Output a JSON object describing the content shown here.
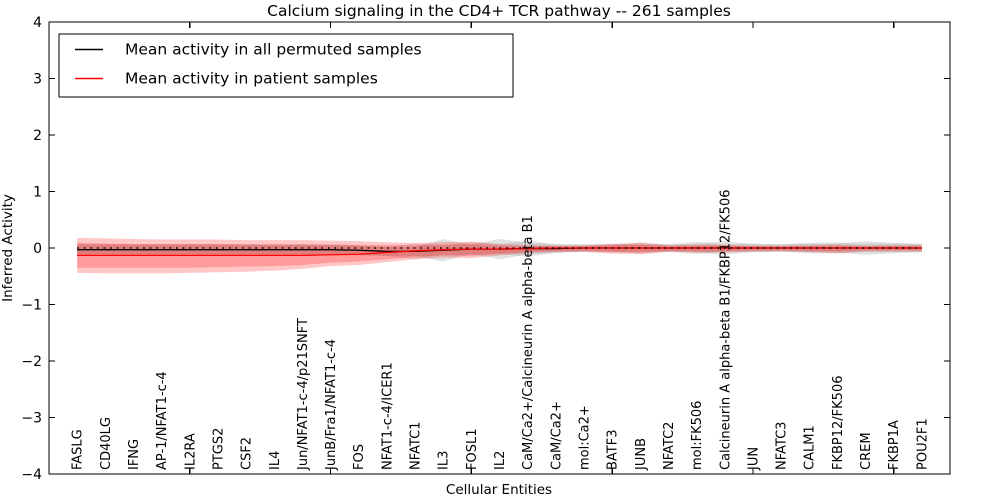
{
  "title": "Calcium signaling in the CD4+ TCR pathway -- 261 samples",
  "xlabel": "Cellular Entities",
  "ylabel": "Inferred Activity",
  "legend": {
    "entries": [
      {
        "label": "Mean activity in all permuted samples",
        "color": "#000000"
      },
      {
        "label": "Mean activity in patient samples",
        "color": "#ff0000"
      }
    ]
  },
  "chart_data": {
    "type": "line",
    "title": "Calcium signaling in the CD4+ TCR pathway -- 261 samples",
    "xlabel": "Cellular Entities",
    "ylabel": "Inferred Activity",
    "ylim": [
      -4,
      4
    ],
    "yticks": [
      4,
      3,
      2,
      1,
      0,
      -1,
      -2,
      -3,
      -4
    ],
    "x_major_tick_positions": [
      5,
      10,
      15,
      20,
      25,
      30
    ],
    "grid": false,
    "legend_position": "upper left",
    "zero_line": {
      "style": "dotted",
      "value": 0,
      "color": "#000000"
    },
    "categories": [
      "FASLG",
      "CD40LG",
      "IFNG",
      "AP-1/NFAT1-c-4",
      "IL2RA",
      "PTGS2",
      "CSF2",
      "IL4",
      "Jun/NFAT1-c-4/p21SNFT",
      "JunB/Fra1/NFAT1-c-4",
      "FOS",
      "NFAT1-c-4/ICER1",
      "NFATC1",
      "IL3",
      "FOSL1",
      "IL2",
      "CaM/Ca2+/Calcineurin A alpha-beta B1",
      "CaM/Ca2+",
      "mol:Ca2+",
      "BATF3",
      "JUNB",
      "NFATC2",
      "mol:FK506",
      "Calcineurin A alpha-beta B1/FKBP12/FK506",
      "JUN",
      "NFATC3",
      "CALM1",
      "FKBP12/FK506",
      "CREM",
      "FKBP1A",
      "POU2F1"
    ],
    "series": [
      {
        "name": "Mean activity in all permuted samples",
        "color": "#000000",
        "values": [
          -0.03,
          -0.03,
          -0.03,
          -0.03,
          -0.03,
          -0.03,
          -0.03,
          -0.03,
          -0.03,
          -0.03,
          -0.04,
          -0.06,
          -0.06,
          -0.04,
          -0.02,
          -0.02,
          -0.01,
          -0.01,
          0,
          0,
          0,
          0,
          0,
          0,
          0,
          0,
          0,
          0,
          0,
          0,
          0
        ]
      },
      {
        "name": "Mean activity in patient samples",
        "color": "#ff0000",
        "values": [
          -0.13,
          -0.13,
          -0.13,
          -0.13,
          -0.13,
          -0.13,
          -0.13,
          -0.13,
          -0.13,
          -0.12,
          -0.11,
          -0.08,
          -0.05,
          -0.03,
          -0.02,
          -0.02,
          -0.01,
          0,
          0,
          0,
          0,
          0,
          0,
          0,
          0,
          0,
          0,
          0,
          0,
          0,
          0
        ]
      }
    ],
    "bands": [
      {
        "name": "permuted-spread-outer",
        "color": "#787878",
        "alpha": 0.22,
        "upper": [
          0.07,
          0.07,
          0.07,
          0.07,
          0.07,
          0.07,
          0.07,
          0.07,
          0.07,
          0.06,
          0.05,
          0.02,
          0.02,
          0.16,
          0.06,
          0.16,
          0.09,
          0.07,
          0.06,
          0.06,
          0.1,
          0.06,
          0.08,
          0.12,
          0.07,
          0.07,
          0.08,
          0.08,
          0.12,
          0.09,
          0.07
        ],
        "lower": [
          -0.13,
          -0.13,
          -0.13,
          -0.13,
          -0.13,
          -0.13,
          -0.13,
          -0.13,
          -0.13,
          -0.12,
          -0.13,
          -0.14,
          -0.14,
          -0.24,
          -0.1,
          -0.2,
          -0.11,
          -0.09,
          -0.06,
          -0.06,
          -0.1,
          -0.06,
          -0.08,
          -0.12,
          -0.07,
          -0.07,
          -0.08,
          -0.08,
          -0.12,
          -0.09,
          -0.07
        ]
      },
      {
        "name": "permuted-spread-inner",
        "color": "#787878",
        "alpha": 0.18,
        "upper": [
          0.05,
          0.05,
          0.05,
          0.05,
          0.05,
          0.05,
          0.05,
          0.05,
          0.05,
          0.05,
          0.04,
          0.02,
          0.08,
          0.04,
          0.11,
          0.06,
          0.14,
          0.06,
          0.07,
          0.08,
          0.06,
          0.07,
          0.11,
          0.06,
          0.08,
          0.06,
          0.09,
          0.1,
          0.07,
          0.08,
          0.08
        ],
        "lower": [
          -0.11,
          -0.11,
          -0.11,
          -0.11,
          -0.11,
          -0.11,
          -0.11,
          -0.11,
          -0.11,
          -0.11,
          -0.12,
          -0.14,
          -0.2,
          -0.12,
          -0.15,
          -0.1,
          -0.16,
          -0.08,
          -0.07,
          -0.08,
          -0.06,
          -0.07,
          -0.11,
          -0.06,
          -0.08,
          -0.06,
          -0.09,
          -0.1,
          -0.07,
          -0.08,
          -0.08
        ]
      },
      {
        "name": "patient-spread-outer",
        "color": "#ff0000",
        "alpha": 0.22,
        "upper": [
          0.18,
          0.17,
          0.16,
          0.15,
          0.15,
          0.15,
          0.14,
          0.14,
          0.14,
          0.13,
          0.12,
          0.1,
          0.09,
          0.1,
          0.11,
          0.07,
          0.05,
          0.04,
          0.04,
          0.07,
          0.09,
          0.05,
          0.06,
          0.06,
          0.04,
          0.04,
          0.05,
          0.06,
          0.04,
          0.05,
          0.05
        ],
        "lower": [
          -0.44,
          -0.45,
          -0.45,
          -0.45,
          -0.44,
          -0.43,
          -0.42,
          -0.4,
          -0.37,
          -0.32,
          -0.3,
          -0.25,
          -0.2,
          -0.17,
          -0.18,
          -0.13,
          -0.09,
          -0.07,
          -0.07,
          -0.1,
          -0.11,
          -0.07,
          -0.08,
          -0.08,
          -0.06,
          -0.06,
          -0.07,
          -0.09,
          -0.06,
          -0.06,
          -0.06
        ]
      },
      {
        "name": "patient-spread-inner",
        "color": "#ff0000",
        "alpha": 0.22,
        "upper": [
          0.09,
          0.08,
          0.07,
          0.07,
          0.07,
          0.07,
          0.06,
          0.06,
          0.06,
          0.06,
          0.05,
          0.05,
          0.05,
          0.06,
          0.07,
          0.04,
          0.03,
          0.03,
          0.03,
          0.05,
          0.06,
          0.03,
          0.04,
          0.04,
          0.03,
          0.03,
          0.03,
          0.04,
          0.03,
          0.03,
          0.03
        ],
        "lower": [
          -0.35,
          -0.35,
          -0.35,
          -0.35,
          -0.35,
          -0.34,
          -0.33,
          -0.32,
          -0.3,
          -0.26,
          -0.24,
          -0.2,
          -0.16,
          -0.13,
          -0.13,
          -0.1,
          -0.07,
          -0.05,
          -0.05,
          -0.07,
          -0.08,
          -0.05,
          -0.06,
          -0.06,
          -0.04,
          -0.04,
          -0.05,
          -0.06,
          -0.04,
          -0.04,
          -0.04
        ]
      }
    ]
  }
}
